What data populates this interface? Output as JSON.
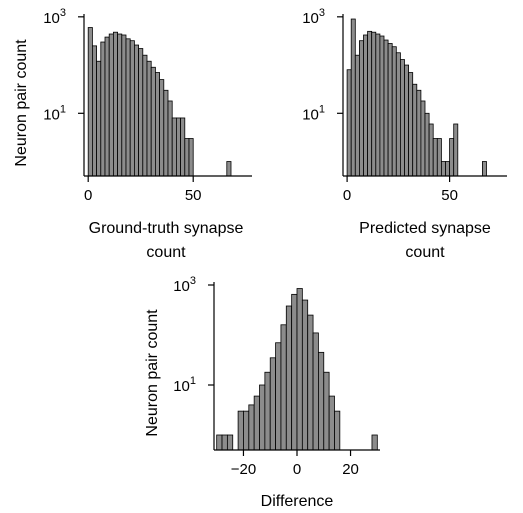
{
  "chart_data": [
    {
      "type": "bar",
      "panel": "ground-truth",
      "xlabel": [
        "Ground-truth synapse",
        "count"
      ],
      "ylabel": "Neuron pair count",
      "y_scale": "log",
      "yticks": [
        {
          "base": "10",
          "exp": "3",
          "value": 1000
        },
        {
          "base": "10",
          "exp": "1",
          "value": 10
        }
      ],
      "xticks": [
        "0",
        "50"
      ],
      "xlim": [
        -2,
        78
      ],
      "ylim_log10": [
        -0.3,
        3.1
      ],
      "bin_width": 2,
      "x": [
        0,
        2,
        4,
        6,
        8,
        10,
        12,
        14,
        16,
        18,
        20,
        22,
        24,
        26,
        28,
        30,
        32,
        34,
        36,
        38,
        40,
        42,
        44,
        46,
        48,
        50,
        52,
        54,
        56,
        58,
        60,
        62,
        64,
        66
      ],
      "values": [
        600,
        250,
        120,
        300,
        380,
        440,
        480,
        440,
        420,
        350,
        320,
        260,
        220,
        160,
        120,
        90,
        70,
        50,
        30,
        18,
        8,
        8,
        8,
        3,
        3,
        0,
        0,
        0,
        0,
        0,
        0,
        0,
        0,
        1
      ]
    },
    {
      "type": "bar",
      "panel": "predicted",
      "xlabel": [
        "Predicted synapse",
        "count"
      ],
      "ylabel": "",
      "y_scale": "log",
      "yticks": [
        {
          "base": "10",
          "exp": "3",
          "value": 1000
        },
        {
          "base": "10",
          "exp": "1",
          "value": 10
        }
      ],
      "xticks": [
        "0",
        "50"
      ],
      "xlim": [
        -2,
        78
      ],
      "ylim_log10": [
        -0.3,
        3.1
      ],
      "bin_width": 2,
      "x": [
        0,
        2,
        4,
        6,
        8,
        10,
        12,
        14,
        16,
        18,
        20,
        22,
        24,
        26,
        28,
        30,
        32,
        34,
        36,
        38,
        40,
        42,
        44,
        46,
        48,
        50,
        52,
        54,
        56,
        58,
        60,
        62,
        64,
        66
      ],
      "values": [
        80,
        900,
        160,
        320,
        420,
        500,
        480,
        440,
        400,
        330,
        280,
        240,
        180,
        130,
        100,
        70,
        40,
        30,
        18,
        10,
        6,
        3,
        3,
        1,
        1,
        3,
        6,
        0,
        0,
        0,
        0,
        0,
        0,
        1
      ]
    },
    {
      "type": "bar",
      "panel": "difference",
      "xlabel": [
        "Difference"
      ],
      "ylabel": "Neuron pair count",
      "y_scale": "log",
      "yticks": [
        {
          "base": "10",
          "exp": "3",
          "value": 1000
        },
        {
          "base": "10",
          "exp": "1",
          "value": 10
        }
      ],
      "xticks": [
        "−20",
        "0",
        "20"
      ],
      "xlim": [
        -31,
        31
      ],
      "ylim_log10": [
        -0.3,
        3.1
      ],
      "bin_width": 2,
      "x": [
        -30,
        -28,
        -26,
        -24,
        -22,
        -20,
        -18,
        -16,
        -14,
        -12,
        -10,
        -8,
        -6,
        -4,
        -2,
        0,
        2,
        4,
        6,
        8,
        10,
        12,
        14,
        16,
        18,
        20,
        22,
        24,
        26,
        28
      ],
      "values": [
        1,
        1,
        1,
        0,
        3,
        3,
        4,
        6,
        10,
        18,
        35,
        70,
        160,
        380,
        650,
        850,
        500,
        250,
        110,
        45,
        18,
        6,
        3,
        0,
        0,
        0,
        0,
        0,
        0,
        1
      ]
    }
  ]
}
